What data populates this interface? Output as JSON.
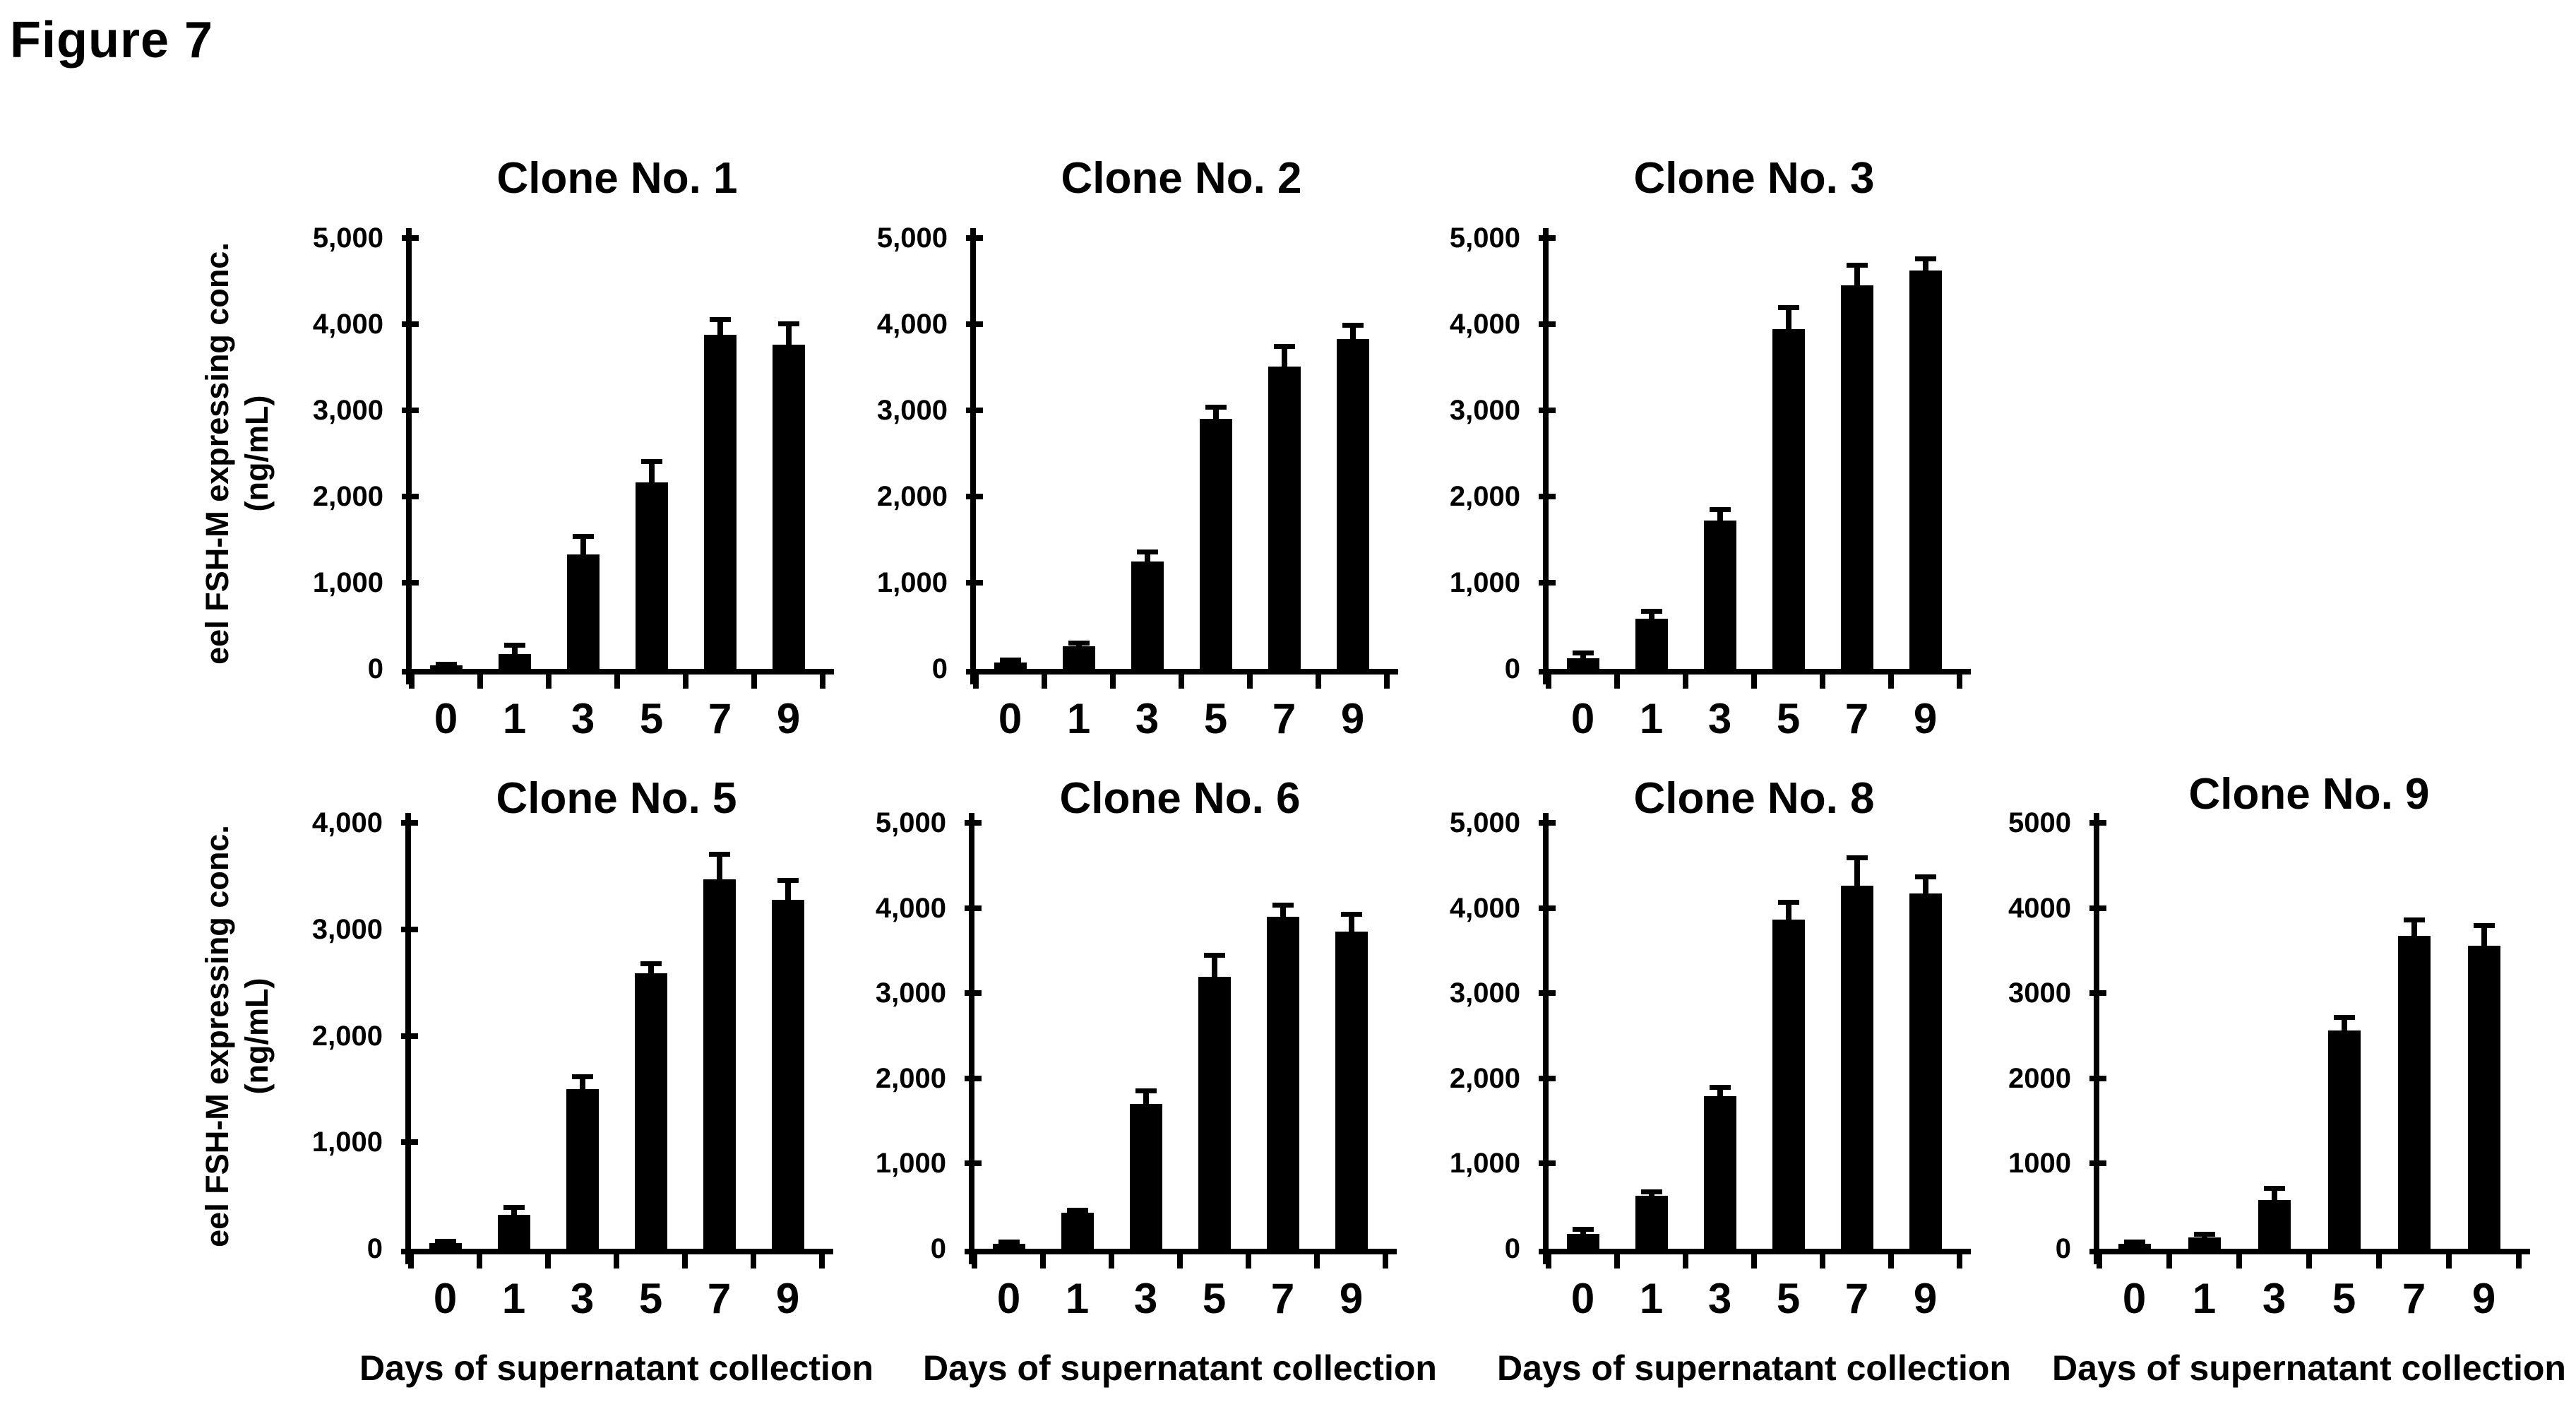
{
  "figure_label": "Figure 7",
  "axes_shared": {
    "ylabel_line1": "eel FSH-M expressing conc.",
    "ylabel_line2": "(ng/mL)",
    "xlabel": "Days of supernatant collection",
    "categories": [
      "0",
      "1",
      "3",
      "5",
      "7",
      "9"
    ]
  },
  "chart_data": [
    {
      "type": "bar",
      "title": "Clone No. 1",
      "categories": [
        "0",
        "1",
        "3",
        "5",
        "7",
        "9"
      ],
      "values": [
        40,
        170,
        1330,
        2160,
        3880,
        3760
      ],
      "errors": [
        15,
        110,
        210,
        250,
        180,
        250
      ],
      "ylim": [
        0,
        5000
      ],
      "ytick_labels": [
        "0",
        "1,000",
        "2,000",
        "3,000",
        "4,000",
        "5,000"
      ],
      "xlabel_shown": false,
      "ylabel_shown": true
    },
    {
      "type": "bar",
      "title": "Clone No. 2",
      "categories": [
        "0",
        "1",
        "3",
        "5",
        "7",
        "9"
      ],
      "values": [
        70,
        260,
        1250,
        2900,
        3510,
        3830
      ],
      "errors": [
        35,
        40,
        110,
        140,
        240,
        160
      ],
      "ylim": [
        0,
        5000
      ],
      "ytick_labels": [
        "0",
        "1,000",
        "2,000",
        "3,000",
        "4,000",
        "5,000"
      ],
      "xlabel_shown": false,
      "ylabel_shown": false
    },
    {
      "type": "bar",
      "title": "Clone No. 3",
      "categories": [
        "0",
        "1",
        "3",
        "5",
        "7",
        "9"
      ],
      "values": [
        120,
        580,
        1720,
        3940,
        4450,
        4620
      ],
      "errors": [
        70,
        90,
        130,
        260,
        240,
        140
      ],
      "ylim": [
        0,
        5000
      ],
      "ytick_labels": [
        "0",
        "1,000",
        "2,000",
        "3,000",
        "4,000",
        "5,000"
      ],
      "xlabel_shown": false,
      "ylabel_shown": false
    },
    {
      "type": "bar",
      "title": "Clone No. 5",
      "categories": [
        "0",
        "1",
        "3",
        "5",
        "7",
        "9"
      ],
      "values": [
        50,
        320,
        1500,
        2590,
        3470,
        3280
      ],
      "errors": [
        25,
        70,
        120,
        90,
        240,
        180
      ],
      "ylim": [
        0,
        4000
      ],
      "ytick_labels": [
        "0",
        "1,000",
        "2,000",
        "3,000",
        "4,000"
      ],
      "xlabel_shown": true,
      "ylabel_shown": true
    },
    {
      "type": "bar",
      "title": "Clone No. 6",
      "categories": [
        "0",
        "1",
        "3",
        "5",
        "7",
        "9"
      ],
      "values": [
        60,
        420,
        1700,
        3190,
        3900,
        3720
      ],
      "errors": [
        25,
        40,
        160,
        260,
        140,
        210
      ],
      "ylim": [
        0,
        5000
      ],
      "ytick_labels": [
        "0",
        "1,000",
        "2,000",
        "3,000",
        "4,000",
        "5,000"
      ],
      "xlabel_shown": true,
      "ylabel_shown": false
    },
    {
      "type": "bar",
      "title": "Clone No. 8",
      "categories": [
        "0",
        "1",
        "3",
        "5",
        "7",
        "9"
      ],
      "values": [
        170,
        620,
        1790,
        3860,
        4260,
        4170
      ],
      "errors": [
        60,
        50,
        110,
        210,
        330,
        200
      ],
      "ylim": [
        0,
        5000
      ],
      "ytick_labels": [
        "0",
        "1,000",
        "2,000",
        "3,000",
        "4,000",
        "5,000"
      ],
      "xlabel_shown": true,
      "ylabel_shown": false
    },
    {
      "type": "bar",
      "title": "Clone No. 9",
      "categories": [
        "0",
        "1",
        "3",
        "5",
        "7",
        "9"
      ],
      "values": [
        60,
        130,
        570,
        2560,
        3670,
        3560
      ],
      "errors": [
        25,
        45,
        140,
        160,
        190,
        240
      ],
      "ylim": [
        0,
        5000
      ],
      "ytick_labels": [
        "0",
        "1000",
        "2000",
        "3000",
        "4000",
        "5000"
      ],
      "xlabel_shown": true,
      "ylabel_shown": false
    }
  ]
}
